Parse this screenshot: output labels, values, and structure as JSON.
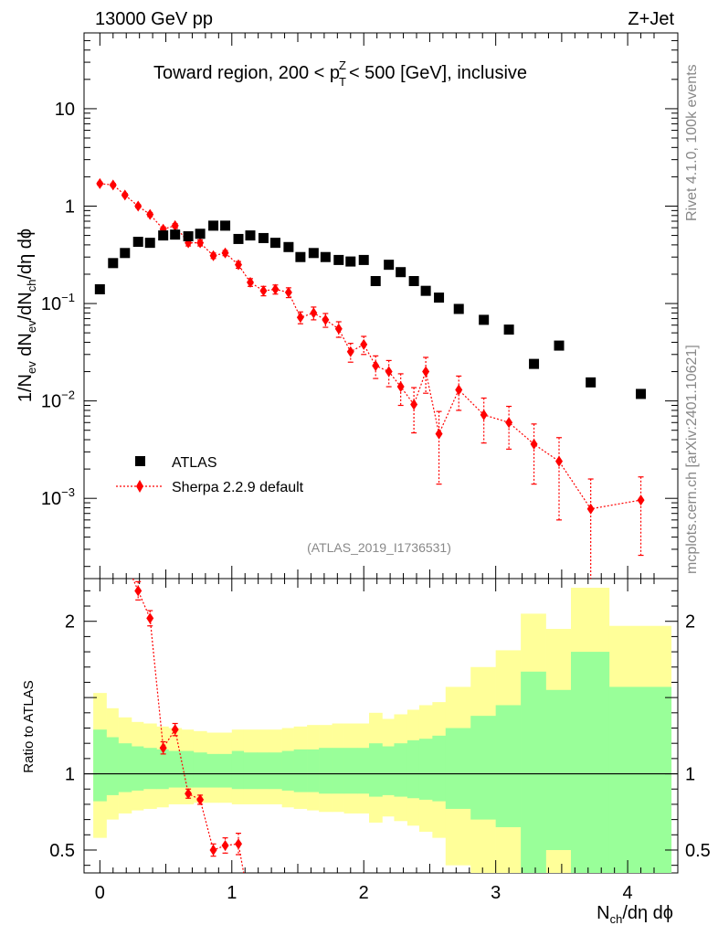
{
  "header": {
    "energy_label": "13000 GeV pp",
    "process_label": "Z+Jet",
    "region_title": "Toward region, 200 < p_T^Z < 500 [GeV], inclusive",
    "watermark": "(ATLAS_2019_I1736531)",
    "side_version": "Rivet 4.1.0,  100k events",
    "side_site": "mcplots.cern.ch [arXiv:2401.10621]"
  },
  "chart_data": [
    {
      "type": "scatter",
      "panel": "main",
      "yscale": "log",
      "ylabel": "1/N_ev dN_ev/dN_ch/dη dφ",
      "xlim": [
        -0.12,
        4.38
      ],
      "ylim": [
        0.00015,
        60
      ],
      "yticks": [
        {
          "value": 0.001,
          "label": "10^-3"
        },
        {
          "value": 0.01,
          "label": "10^-2"
        },
        {
          "value": 0.1,
          "label": "10^-1"
        },
        {
          "value": 1,
          "label": "1"
        },
        {
          "value": 10,
          "label": "10"
        }
      ],
      "legend": {
        "position": "lower-left",
        "atlas_label": "ATLAS",
        "mc_label": "Sherpa 2.2.9 default"
      },
      "series": [
        {
          "name": "ATLAS",
          "marker": "square",
          "color": "#000000",
          "x": [
            0.0,
            0.1,
            0.19,
            0.29,
            0.38,
            0.48,
            0.57,
            0.67,
            0.76,
            0.86,
            0.95,
            1.05,
            1.14,
            1.24,
            1.33,
            1.43,
            1.52,
            1.62,
            1.71,
            1.81,
            1.9,
            2.0,
            2.09,
            2.19,
            2.28,
            2.38,
            2.47,
            2.57,
            2.72,
            2.91,
            3.1,
            3.29,
            3.48,
            3.72,
            4.1
          ],
          "values": [
            0.14,
            0.26,
            0.33,
            0.43,
            0.42,
            0.5,
            0.51,
            0.49,
            0.52,
            0.63,
            0.63,
            0.46,
            0.5,
            0.47,
            0.42,
            0.38,
            0.3,
            0.33,
            0.3,
            0.28,
            0.27,
            0.28,
            0.17,
            0.25,
            0.21,
            0.17,
            0.135,
            0.115,
            0.088,
            0.068,
            0.054,
            0.024,
            0.037,
            0.0155,
            0.0118
          ]
        },
        {
          "name": "Sherpa 2.2.9 default",
          "marker": "diamond",
          "color": "#ff0000",
          "x": [
            0.0,
            0.1,
            0.19,
            0.29,
            0.38,
            0.48,
            0.57,
            0.67,
            0.76,
            0.86,
            0.95,
            1.05,
            1.14,
            1.24,
            1.33,
            1.43,
            1.52,
            1.62,
            1.71,
            1.81,
            1.9,
            2.0,
            2.09,
            2.19,
            2.28,
            2.38,
            2.47,
            2.57,
            2.72,
            2.91,
            3.1,
            3.29,
            3.48,
            3.72,
            4.1
          ],
          "values": [
            1.7,
            1.65,
            1.3,
            1.0,
            0.82,
            0.58,
            0.63,
            0.42,
            0.42,
            0.31,
            0.33,
            0.25,
            0.165,
            0.135,
            0.14,
            0.13,
            0.072,
            0.08,
            0.068,
            0.055,
            0.032,
            0.038,
            0.023,
            0.02,
            0.014,
            0.0092,
            0.02,
            0.0046,
            0.013,
            0.0072,
            0.006,
            0.0036,
            0.0024,
            0.00078,
            0.00096
          ],
          "err": [
            0.06,
            0.06,
            0.05,
            0.04,
            0.04,
            0.03,
            0.03,
            0.03,
            0.03,
            0.02,
            0.02,
            0.02,
            0.015,
            0.015,
            0.015,
            0.015,
            0.01,
            0.012,
            0.011,
            0.01,
            0.007,
            0.008,
            0.006,
            0.006,
            0.005,
            0.0045,
            0.008,
            0.0032,
            0.005,
            0.0035,
            0.0028,
            0.0022,
            0.0018,
            0.0008,
            0.0007
          ]
        }
      ]
    },
    {
      "type": "scatter",
      "panel": "ratio",
      "ylabel": "Ratio to ATLAS",
      "xlabel": "N_ch/dη dφ",
      "xlim": [
        -0.12,
        4.38
      ],
      "ylim": [
        0.35,
        2.28
      ],
      "yticks": [
        0.5,
        1,
        2
      ],
      "xticks": [
        0,
        1,
        2,
        3,
        4
      ],
      "reference_line": 1,
      "bands": {
        "edges": [
          -0.05,
          0.05,
          0.14,
          0.24,
          0.33,
          0.43,
          0.52,
          0.62,
          0.71,
          0.81,
          0.9,
          1.0,
          1.09,
          1.19,
          1.28,
          1.38,
          1.47,
          1.57,
          1.66,
          1.76,
          1.85,
          1.95,
          2.04,
          2.14,
          2.23,
          2.33,
          2.42,
          2.52,
          2.62,
          2.81,
          3.0,
          3.19,
          3.38,
          3.57,
          3.86,
          4.33
        ],
        "inner_up": [
          1.29,
          1.24,
          1.2,
          1.18,
          1.17,
          1.16,
          1.15,
          1.15,
          1.14,
          1.13,
          1.13,
          1.15,
          1.14,
          1.14,
          1.14,
          1.15,
          1.16,
          1.16,
          1.17,
          1.17,
          1.17,
          1.17,
          1.2,
          1.18,
          1.2,
          1.22,
          1.23,
          1.25,
          1.3,
          1.38,
          1.45,
          1.67,
          1.55,
          1.8,
          1.57
        ],
        "inner_lo": [
          0.82,
          0.86,
          0.88,
          0.89,
          0.9,
          0.9,
          0.91,
          0.91,
          0.91,
          0.91,
          0.91,
          0.9,
          0.9,
          0.9,
          0.9,
          0.89,
          0.88,
          0.88,
          0.87,
          0.87,
          0.87,
          0.87,
          0.85,
          0.86,
          0.85,
          0.84,
          0.83,
          0.82,
          0.77,
          0.7,
          0.65,
          0.35,
          0.5,
          0.35,
          0.35
        ],
        "outer_up": [
          1.53,
          1.43,
          1.37,
          1.34,
          1.33,
          1.31,
          1.3,
          1.29,
          1.28,
          1.27,
          1.27,
          1.29,
          1.29,
          1.29,
          1.29,
          1.3,
          1.31,
          1.32,
          1.32,
          1.33,
          1.33,
          1.33,
          1.4,
          1.36,
          1.39,
          1.42,
          1.45,
          1.47,
          1.57,
          1.7,
          1.81,
          2.05,
          1.95,
          2.22,
          1.97
        ],
        "outer_lo": [
          0.58,
          0.7,
          0.74,
          0.76,
          0.77,
          0.78,
          0.8,
          0.8,
          0.81,
          0.81,
          0.81,
          0.8,
          0.8,
          0.8,
          0.8,
          0.78,
          0.77,
          0.76,
          0.75,
          0.75,
          0.74,
          0.74,
          0.68,
          0.72,
          0.69,
          0.66,
          0.62,
          0.58,
          0.4,
          0.35,
          0.35,
          0.35,
          0.35,
          0.35,
          0.35
        ],
        "inner_color": "#99ff99",
        "outer_color": "#ffff99"
      },
      "series": [
        {
          "name": "Sherpa 2.2.9 default / ATLAS",
          "marker": "diamond",
          "color": "#ff0000",
          "x": [
            0.29,
            0.38,
            0.48,
            0.57,
            0.67,
            0.76,
            0.86,
            0.95,
            1.05
          ],
          "values": [
            2.2,
            2.02,
            1.17,
            1.29,
            0.87,
            0.83,
            0.5,
            0.53,
            0.54
          ],
          "err": [
            0.06,
            0.05,
            0.04,
            0.04,
            0.03,
            0.03,
            0.04,
            0.05,
            0.07
          ]
        }
      ]
    }
  ]
}
